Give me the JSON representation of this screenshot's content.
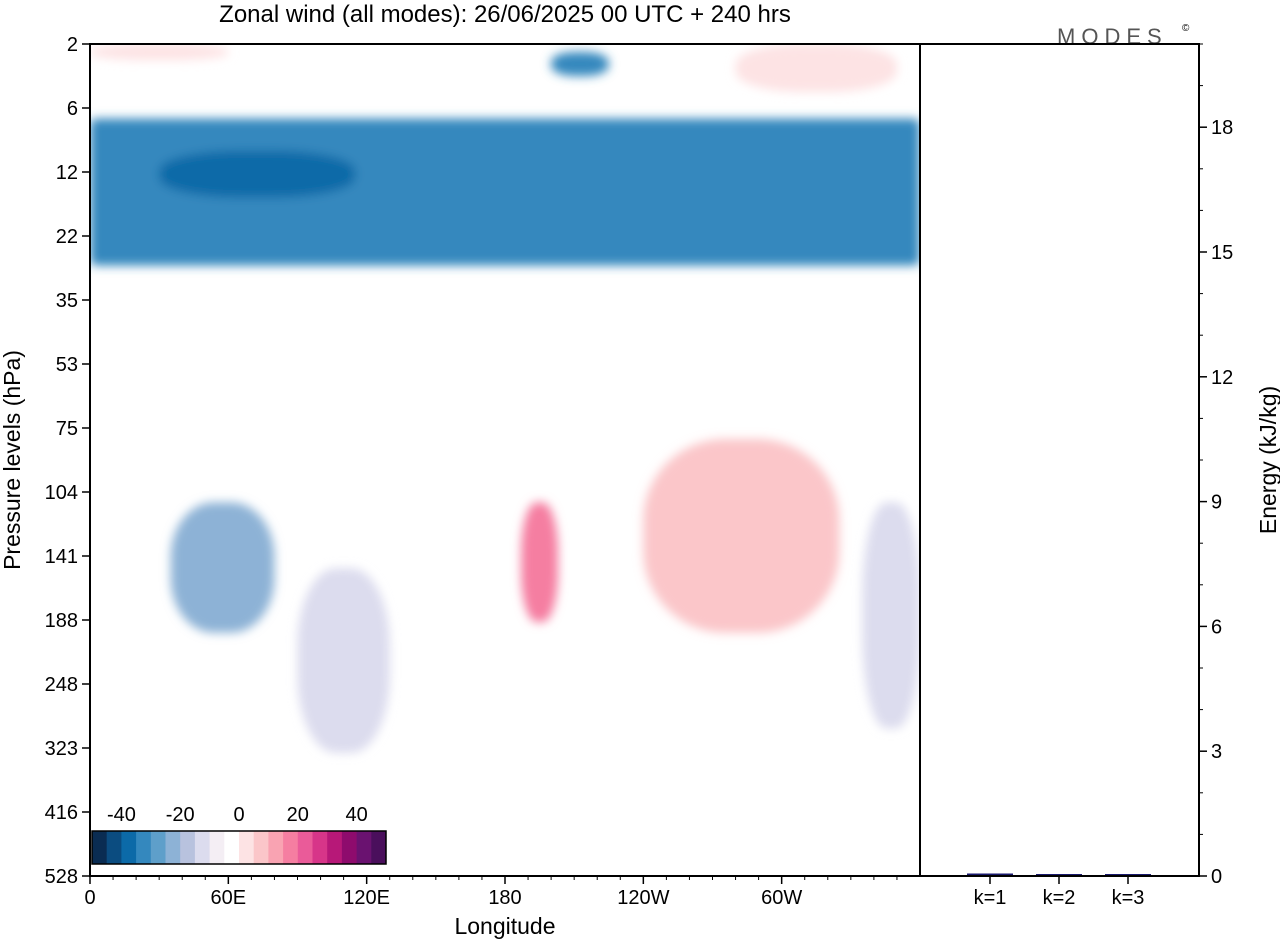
{
  "title": "Zonal wind (all modes):  26/06/2025  00 UTC  + 240 hrs",
  "logo": "MODES",
  "logo_mark": "©",
  "chart_data": [
    {
      "type": "heatmap",
      "title": "Zonal wind (all modes):  26/06/2025  00 UTC  + 240 hrs",
      "xlabel": "Longitude",
      "ylabel": "Pressure levels (hPa)",
      "x_ticks": [
        "0",
        "60E",
        "120E",
        "180",
        "120W",
        "60W"
      ],
      "x_tick_degrees": [
        0,
        60,
        120,
        180,
        240,
        300
      ],
      "xlim": [
        0,
        360
      ],
      "y_ticks": [
        "2",
        "6",
        "12",
        "22",
        "35",
        "53",
        "75",
        "104",
        "141",
        "188",
        "248",
        "323",
        "416",
        "528"
      ],
      "colorbar": {
        "ticks": [
          "-40",
          "-20",
          "0",
          "20",
          "40"
        ],
        "tick_values": [
          -40,
          -20,
          0,
          20,
          40
        ],
        "range": [
          -50,
          50
        ],
        "step": 5,
        "colors": [
          "#0a2c52",
          "#0b4c80",
          "#0c6aa8",
          "#3488be",
          "#5e9fca",
          "#8db2d6",
          "#b8c2de",
          "#dcdcee",
          "#f4eef4",
          "#ffffff",
          "#fde3e4",
          "#fbc6c9",
          "#f9a3b2",
          "#f57ea1",
          "#ea5b99",
          "#d73589",
          "#b71878",
          "#8e0b6d",
          "#6a1270",
          "#4a0f5c"
        ]
      },
      "features": [
        {
          "desc": "easterly band",
          "lon": [
            0,
            360
          ],
          "level": [
            7,
            28
          ],
          "value": -32
        },
        {
          "desc": "easterly max",
          "lon": [
            200,
            225
          ],
          "level": [
            2.5,
            4
          ],
          "value": -35
        },
        {
          "desc": "easterly max",
          "lon": [
            30,
            115
          ],
          "level": [
            10,
            16
          ],
          "value": -38
        },
        {
          "desc": "westerly",
          "lon": [
            0,
            60
          ],
          "level": [
            2,
            3
          ],
          "value": 3
        },
        {
          "desc": "westerly",
          "lon": [
            280,
            350
          ],
          "level": [
            2,
            5
          ],
          "value": 4
        },
        {
          "desc": "easterly",
          "lon": [
            35,
            80
          ],
          "level": [
            110,
            200
          ],
          "value": -25
        },
        {
          "desc": "easterly",
          "lon": [
            90,
            130
          ],
          "level": [
            150,
            330
          ],
          "value": -14
        },
        {
          "desc": "westerly max",
          "lon": [
            187,
            203
          ],
          "level": [
            110,
            190
          ],
          "value": 18
        },
        {
          "desc": "westerly",
          "lon": [
            240,
            325
          ],
          "level": [
            80,
            200
          ],
          "value": 7
        },
        {
          "desc": "easterly",
          "lon": [
            335,
            360
          ],
          "level": [
            110,
            300
          ],
          "value": -12
        }
      ]
    },
    {
      "type": "bar",
      "ylabel": "Energy (kJ/kg)",
      "categories": [
        "k=1",
        "k=2",
        "k=3"
      ],
      "values": [
        0.06,
        0.03,
        0.02
      ],
      "ylim": [
        0,
        20
      ],
      "y_ticks": [
        0,
        3,
        6,
        9,
        12,
        15,
        18
      ],
      "bar_color": "#1a1a6e"
    }
  ]
}
